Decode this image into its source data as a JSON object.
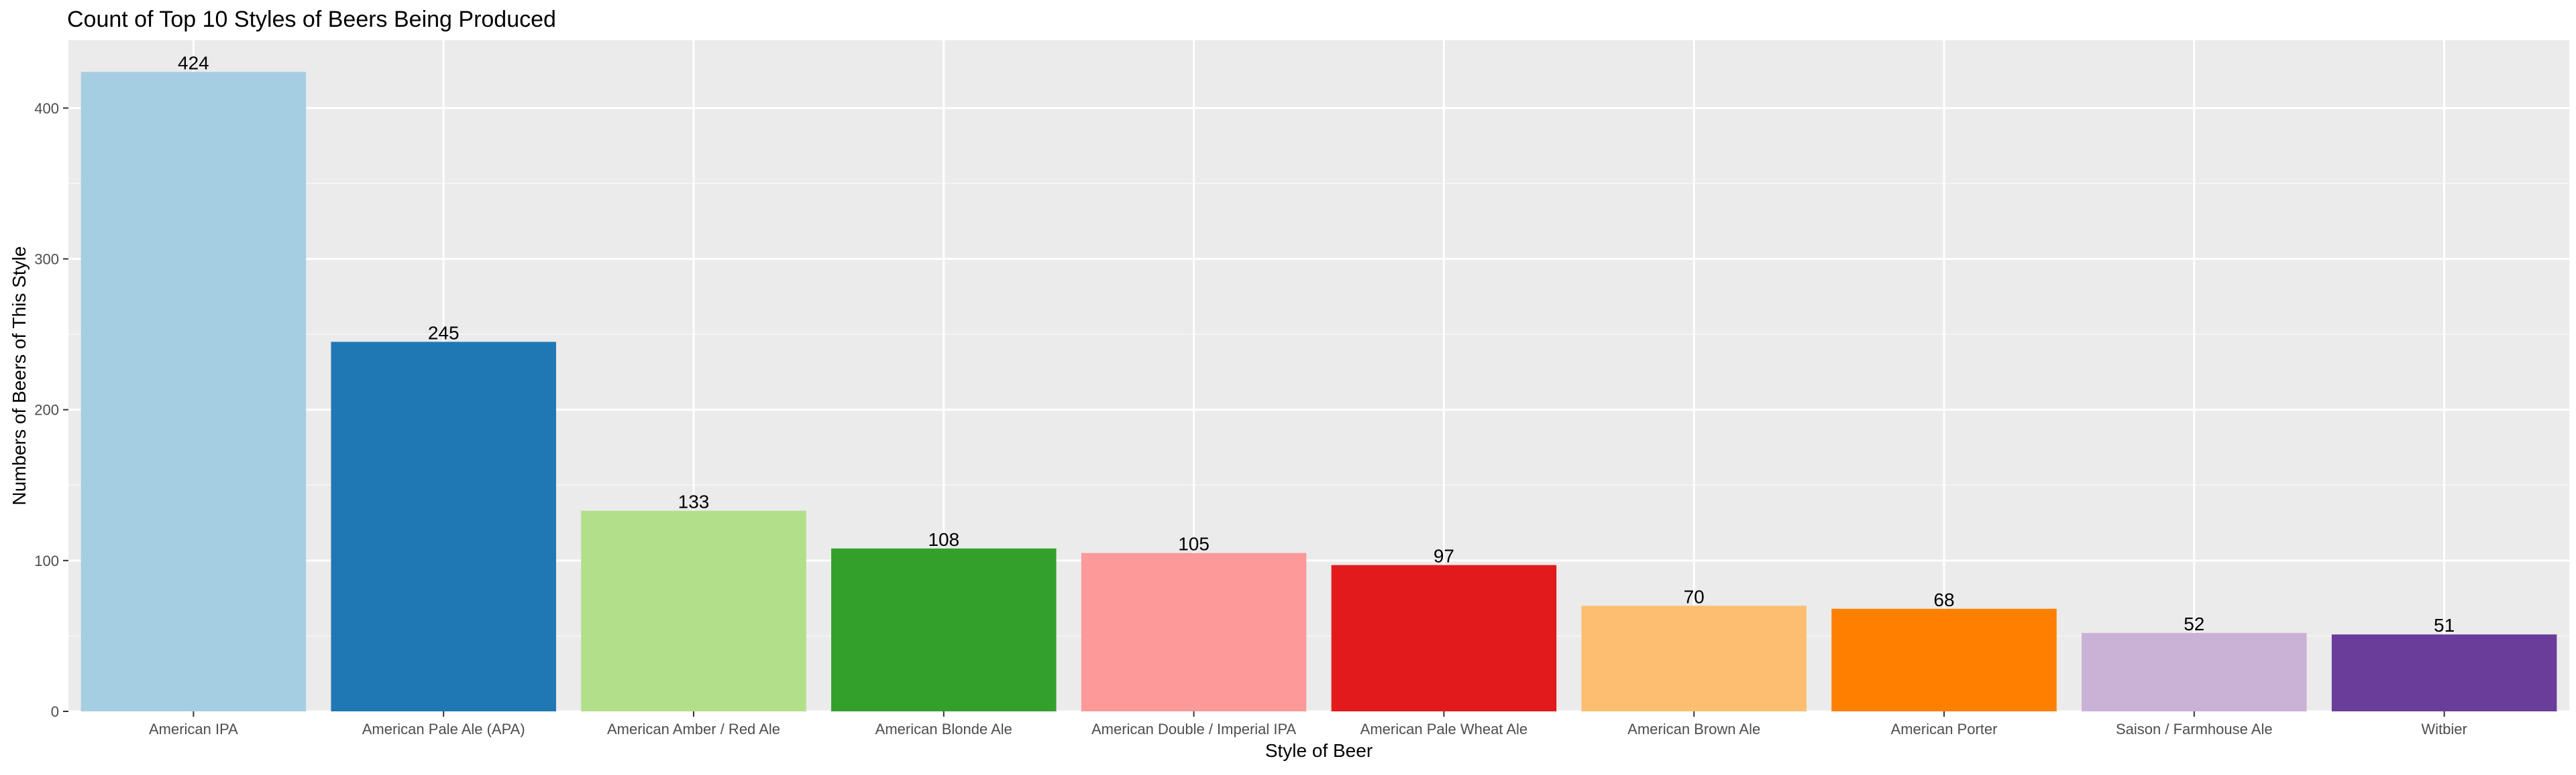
{
  "chart_data": {
    "type": "bar",
    "title": "Count of Top 10 Styles of Beers Being Produced",
    "xlabel": "Style of Beer",
    "ylabel": "Numbers of Beers of This Style",
    "categories": [
      "American IPA",
      "American Pale Ale (APA)",
      "American Amber / Red Ale",
      "American Blonde Ale",
      "American Double / Imperial IPA",
      "American Pale Wheat Ale",
      "American Brown Ale",
      "American Porter",
      "Saison / Farmhouse Ale",
      "Witbier"
    ],
    "values": [
      424,
      245,
      133,
      108,
      105,
      97,
      70,
      68,
      52,
      51
    ],
    "colors": [
      "#A6CEE3",
      "#1F78B4",
      "#B2DF8A",
      "#33A02C",
      "#FB9A99",
      "#E31A1C",
      "#FDBF6F",
      "#FF7F00",
      "#CAB2D6",
      "#6A3D9A"
    ],
    "yticks": [
      0,
      100,
      200,
      300,
      400
    ],
    "ylim": [
      0,
      445
    ],
    "grid": true,
    "panel_background": "#EBEBEB",
    "legend": "none"
  }
}
